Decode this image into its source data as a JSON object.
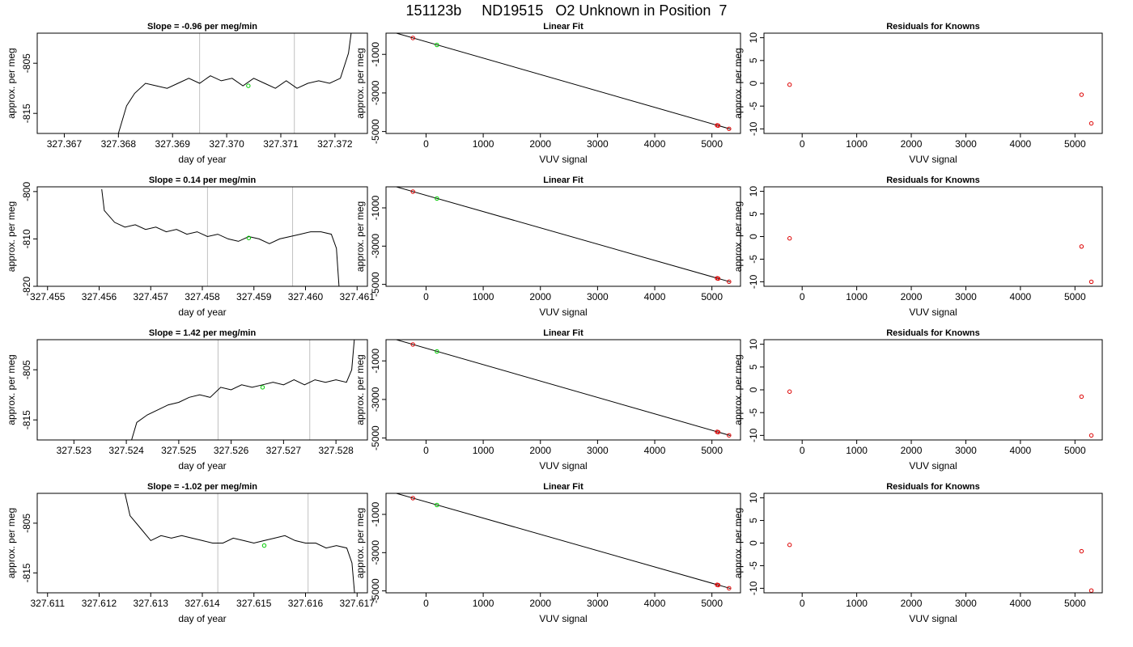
{
  "figure": {
    "title": "151123b     ND19515   O2 Unknown in Position  7"
  },
  "chart_data": [
    {
      "type": "line",
      "row": 1,
      "col": 1,
      "title": "Slope =  -0.96  per meg/min",
      "xlabel": "day of year",
      "ylabel": "approx. per meg",
      "xlim": [
        327.3665,
        327.3726
      ],
      "ylim": [
        -819,
        -799
      ],
      "xticks": [
        327.367,
        327.368,
        327.369,
        327.37,
        327.371,
        327.372
      ],
      "xtick_labels": [
        "327.367",
        "327.368",
        "327.369",
        "327.370",
        "327.371",
        "327.372"
      ],
      "yticks": [
        -805,
        -815
      ],
      "ytick_labels": [
        "-805",
        "-815"
      ],
      "vlines": [
        327.3695,
        327.37125
      ],
      "series": [
        {
          "x": [
            327.368,
            327.36815,
            327.3683,
            327.3685,
            327.3687,
            327.3689,
            327.3691,
            327.3693,
            327.3695,
            327.3697,
            327.3699,
            327.3701,
            327.3703,
            327.3705,
            327.3707,
            327.3709,
            327.3711,
            327.3713,
            327.3715,
            327.3717,
            327.3719,
            327.3721,
            327.37225,
            327.3723
          ],
          "y": [
            -819,
            -813.5,
            -811,
            -809,
            -809.5,
            -810,
            -809,
            -808,
            -809,
            -807.5,
            -808.5,
            -808,
            -809.5,
            -808,
            -809,
            -810,
            -808.5,
            -810,
            -809,
            -808.5,
            -809,
            -808,
            -803,
            -799
          ]
        }
      ],
      "points": [
        {
          "x": 327.3704,
          "y": -809.5,
          "color": "#00cc00"
        }
      ]
    },
    {
      "type": "scatter",
      "row": 1,
      "col": 2,
      "title": "Linear Fit",
      "xlabel": "VUV signal",
      "ylabel": "approx. per meg",
      "xlim": [
        -700,
        5500
      ],
      "ylim": [
        -5100,
        100
      ],
      "xticks": [
        0,
        1000,
        2000,
        3000,
        4000,
        5000
      ],
      "yticks": [
        -1000,
        -3000,
        -5000
      ],
      "fit_line": {
        "x": [
          -520,
          5320
        ],
        "y": [
          100,
          -4870
        ]
      },
      "knowns": [
        {
          "x": -230,
          "y": -150
        },
        {
          "x": 5090,
          "y": -4680
        },
        {
          "x": 5110,
          "y": -4695
        },
        {
          "x": 5300,
          "y": -4860
        }
      ],
      "unknown": [
        {
          "x": 190,
          "y": -510
        }
      ]
    },
    {
      "type": "scatter",
      "row": 1,
      "col": 3,
      "title": "Residuals for Knowns",
      "xlabel": "VUV signal",
      "ylabel": "approx. per meg",
      "xlim": [
        -700,
        5500
      ],
      "ylim": [
        -11,
        11
      ],
      "xticks": [
        0,
        1000,
        2000,
        3000,
        4000,
        5000
      ],
      "yticks": [
        10,
        5,
        0,
        -5,
        -10
      ],
      "points": [
        {
          "x": -230,
          "y": -0.3
        },
        {
          "x": 5120,
          "y": -2.5
        },
        {
          "x": 5300,
          "y": -8.8
        }
      ]
    },
    {
      "type": "line",
      "row": 2,
      "col": 1,
      "title": "Slope =  0.14  per meg/min",
      "xlabel": "day of year",
      "ylabel": "approx. per meg",
      "xlim": [
        327.4548,
        327.4612
      ],
      "ylim": [
        -820,
        -799
      ],
      "xticks": [
        327.455,
        327.456,
        327.457,
        327.458,
        327.459,
        327.46,
        327.461
      ],
      "xtick_labels": [
        "327.455",
        "327.456",
        "327.457",
        "327.458",
        "327.459",
        "327.460",
        "327.461"
      ],
      "yticks": [
        -800,
        -810,
        -820
      ],
      "ytick_labels": [
        "-800",
        "-810",
        "-820"
      ],
      "vlines": [
        327.4581,
        327.45975
      ],
      "series": [
        {
          "x": [
            327.45605,
            327.4561,
            327.4563,
            327.4565,
            327.4567,
            327.4569,
            327.4571,
            327.4573,
            327.4575,
            327.4577,
            327.4579,
            327.4581,
            327.4583,
            327.4585,
            327.4587,
            327.4589,
            327.4591,
            327.4593,
            327.4595,
            327.4597,
            327.4599,
            327.4601,
            327.4603,
            327.4605,
            327.4606,
            327.46065
          ],
          "y": [
            -799.5,
            -804,
            -806.5,
            -807.5,
            -807,
            -808,
            -807.5,
            -808.5,
            -808,
            -809,
            -808.5,
            -809.5,
            -809,
            -810,
            -810.5,
            -809.5,
            -810,
            -811,
            -810,
            -809.5,
            -809,
            -808.5,
            -808.5,
            -809,
            -812,
            -820
          ]
        }
      ],
      "points": [
        {
          "x": 327.4589,
          "y": -809.8,
          "color": "#00cc00"
        }
      ]
    },
    {
      "type": "scatter",
      "row": 2,
      "col": 2,
      "title": "Linear Fit",
      "xlabel": "VUV signal",
      "ylabel": "approx. per meg",
      "xlim": [
        -700,
        5500
      ],
      "ylim": [
        -5100,
        100
      ],
      "xticks": [
        0,
        1000,
        2000,
        3000,
        4000,
        5000
      ],
      "yticks": [
        -1000,
        -3000,
        -5000
      ],
      "fit_line": {
        "x": [
          -520,
          5320
        ],
        "y": [
          100,
          -4870
        ]
      },
      "knowns": [
        {
          "x": -230,
          "y": -150
        },
        {
          "x": 5090,
          "y": -4680
        },
        {
          "x": 5110,
          "y": -4695
        },
        {
          "x": 5300,
          "y": -4860
        }
      ],
      "unknown": [
        {
          "x": 190,
          "y": -510
        }
      ]
    },
    {
      "type": "scatter",
      "row": 2,
      "col": 3,
      "title": "Residuals for Knowns",
      "xlabel": "VUV signal",
      "ylabel": "approx. per meg",
      "xlim": [
        -700,
        5500
      ],
      "ylim": [
        -11,
        11
      ],
      "xticks": [
        0,
        1000,
        2000,
        3000,
        4000,
        5000
      ],
      "yticks": [
        10,
        5,
        0,
        -5,
        -10
      ],
      "points": [
        {
          "x": -230,
          "y": -0.4
        },
        {
          "x": 5120,
          "y": -2.2
        },
        {
          "x": 5300,
          "y": -10
        }
      ]
    },
    {
      "type": "line",
      "row": 3,
      "col": 1,
      "title": "Slope =  1.42  per meg/min",
      "xlabel": "day of year",
      "ylabel": "approx. per meg",
      "xlim": [
        327.5223,
        327.5286
      ],
      "ylim": [
        -819,
        -799
      ],
      "xticks": [
        327.523,
        327.524,
        327.525,
        327.526,
        327.527,
        327.528
      ],
      "xtick_labels": [
        "327.523",
        "327.524",
        "327.525",
        "327.526",
        "327.527",
        "327.528"
      ],
      "yticks": [
        -805,
        -815
      ],
      "ytick_labels": [
        "-805",
        "-815"
      ],
      "vlines": [
        327.52575,
        327.5275
      ],
      "series": [
        {
          "x": [
            327.5241,
            327.5242,
            327.5244,
            327.5246,
            327.5248,
            327.525,
            327.5252,
            327.5254,
            327.5256,
            327.5258,
            327.526,
            327.5262,
            327.5264,
            327.5266,
            327.5268,
            327.527,
            327.5272,
            327.5274,
            327.5276,
            327.5278,
            327.528,
            327.5282,
            327.5283,
            327.52835
          ],
          "y": [
            -819,
            -815.5,
            -814,
            -813,
            -812,
            -811.5,
            -810.5,
            -810,
            -810.5,
            -808.5,
            -809,
            -808,
            -808.5,
            -808,
            -807.5,
            -808,
            -807,
            -808,
            -807,
            -807.5,
            -807,
            -807.5,
            -805,
            -799
          ]
        }
      ],
      "points": [
        {
          "x": 327.5266,
          "y": -808.5,
          "color": "#00cc00"
        }
      ]
    },
    {
      "type": "scatter",
      "row": 3,
      "col": 2,
      "title": "Linear Fit",
      "xlabel": "VUV signal",
      "ylabel": "approx. per meg",
      "xlim": [
        -700,
        5500
      ],
      "ylim": [
        -5100,
        100
      ],
      "xticks": [
        0,
        1000,
        2000,
        3000,
        4000,
        5000
      ],
      "yticks": [
        -1000,
        -3000,
        -5000
      ],
      "fit_line": {
        "x": [
          -520,
          5320
        ],
        "y": [
          100,
          -4870
        ]
      },
      "knowns": [
        {
          "x": -230,
          "y": -150
        },
        {
          "x": 5090,
          "y": -4680
        },
        {
          "x": 5110,
          "y": -4695
        },
        {
          "x": 5300,
          "y": -4860
        }
      ],
      "unknown": [
        {
          "x": 190,
          "y": -510
        }
      ]
    },
    {
      "type": "scatter",
      "row": 3,
      "col": 3,
      "title": "Residuals for Knowns",
      "xlabel": "VUV signal",
      "ylabel": "approx. per meg",
      "xlim": [
        -700,
        5500
      ],
      "ylim": [
        -11,
        11
      ],
      "xticks": [
        0,
        1000,
        2000,
        3000,
        4000,
        5000
      ],
      "yticks": [
        10,
        5,
        0,
        -5,
        -10
      ],
      "points": [
        {
          "x": -230,
          "y": -0.4
        },
        {
          "x": 5120,
          "y": -1.5
        },
        {
          "x": 5300,
          "y": -10
        }
      ]
    },
    {
      "type": "line",
      "row": 4,
      "col": 1,
      "title": "Slope =  -1.02  per meg/min",
      "xlabel": "day of year",
      "ylabel": "approx. per meg",
      "xlim": [
        327.6108,
        327.6172
      ],
      "ylim": [
        -819,
        -799
      ],
      "xticks": [
        327.611,
        327.612,
        327.613,
        327.614,
        327.615,
        327.616,
        327.617
      ],
      "xtick_labels": [
        "327.611",
        "327.612",
        "327.613",
        "327.614",
        "327.615",
        "327.616",
        "327.617"
      ],
      "yticks": [
        -805,
        -815
      ],
      "ytick_labels": [
        "-805",
        "-815"
      ],
      "vlines": [
        327.6143,
        327.61605
      ],
      "series": [
        {
          "x": [
            327.6125,
            327.6126,
            327.6128,
            327.613,
            327.6132,
            327.6134,
            327.6136,
            327.6138,
            327.614,
            327.6142,
            327.6144,
            327.6146,
            327.6148,
            327.615,
            327.6152,
            327.6154,
            327.6156,
            327.6158,
            327.616,
            327.6162,
            327.6164,
            327.6166,
            327.6168,
            327.6169,
            327.61695
          ],
          "y": [
            -799,
            -803.5,
            -806,
            -808.5,
            -807.5,
            -808,
            -807.5,
            -808,
            -808.5,
            -809,
            -809,
            -808,
            -808.5,
            -809,
            -808.5,
            -808,
            -807.5,
            -808.5,
            -809,
            -809,
            -810,
            -809.5,
            -810,
            -813,
            -819
          ]
        }
      ],
      "points": [
        {
          "x": 327.6152,
          "y": -809.5,
          "color": "#00cc00"
        }
      ]
    },
    {
      "type": "scatter",
      "row": 4,
      "col": 2,
      "title": "Linear Fit",
      "xlabel": "VUV signal",
      "ylabel": "approx. per meg",
      "xlim": [
        -700,
        5500
      ],
      "ylim": [
        -5100,
        100
      ],
      "xticks": [
        0,
        1000,
        2000,
        3000,
        4000,
        5000
      ],
      "yticks": [
        -1000,
        -3000,
        -5000
      ],
      "fit_line": {
        "x": [
          -520,
          5320
        ],
        "y": [
          100,
          -4870
        ]
      },
      "knowns": [
        {
          "x": -230,
          "y": -150
        },
        {
          "x": 5090,
          "y": -4680
        },
        {
          "x": 5110,
          "y": -4695
        },
        {
          "x": 5300,
          "y": -4860
        }
      ],
      "unknown": [
        {
          "x": 190,
          "y": -510
        }
      ]
    },
    {
      "type": "scatter",
      "row": 4,
      "col": 3,
      "title": "Residuals for Knowns",
      "xlabel": "VUV signal",
      "ylabel": "approx. per meg",
      "xlim": [
        -700,
        5500
      ],
      "ylim": [
        -11,
        11
      ],
      "xticks": [
        0,
        1000,
        2000,
        3000,
        4000,
        5000
      ],
      "yticks": [
        10,
        5,
        0,
        -5,
        -10
      ],
      "points": [
        {
          "x": -230,
          "y": -0.4
        },
        {
          "x": 5120,
          "y": -1.8
        },
        {
          "x": 5300,
          "y": -10.5
        }
      ]
    }
  ],
  "colors": {
    "trace": "#000000",
    "fit_line": "#000000",
    "known_point": "#dd0000",
    "unknown_point": "#00cc00",
    "vline": "#c0c0c0",
    "axis": "#000000"
  }
}
